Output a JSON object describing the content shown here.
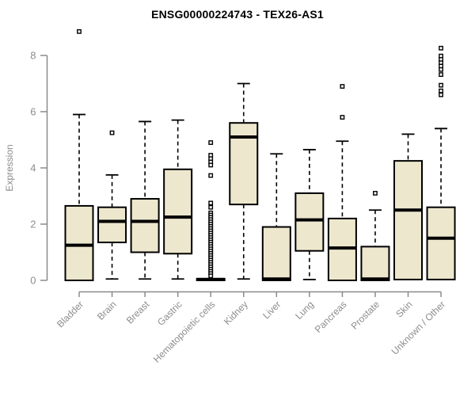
{
  "chart_data": {
    "type": "boxplot",
    "title": "ENSG00000224743 - TEX26-AS1",
    "xlabel": "",
    "ylabel": "Expression",
    "ylim": [
      0,
      8.9
    ],
    "yticks": [
      0,
      2,
      4,
      6,
      8
    ],
    "grid": false,
    "legend": "none",
    "categories": [
      "Bladder",
      "Brain",
      "Breast",
      "Gastric",
      "Hematopoietic cells",
      "Kidney",
      "Liver",
      "Lung",
      "Pancreas",
      "Prostate",
      "Skin",
      "Unknown / Other"
    ],
    "series": [
      {
        "category": "Bladder",
        "whisker_low": 0,
        "q1": 0,
        "median": 1.25,
        "q3": 2.65,
        "whisker_high": 5.9,
        "outliers": [
          8.85
        ]
      },
      {
        "category": "Brain",
        "whisker_low": 0.05,
        "q1": 1.35,
        "median": 2.1,
        "q3": 2.6,
        "whisker_high": 3.75,
        "outliers": [
          5.25
        ]
      },
      {
        "category": "Breast",
        "whisker_low": 0.05,
        "q1": 1.0,
        "median": 2.1,
        "q3": 2.9,
        "whisker_high": 5.65,
        "outliers": []
      },
      {
        "category": "Gastric",
        "whisker_low": 0.05,
        "q1": 0.95,
        "median": 2.25,
        "q3": 3.95,
        "whisker_high": 5.7,
        "outliers": []
      },
      {
        "category": "Hematopoietic cells",
        "whisker_low": 0,
        "q1": 0,
        "median": 0.03,
        "q3": 0.06,
        "whisker_high": 0.06,
        "outliers": [
          4.9,
          4.45,
          4.33,
          4.21,
          4.1,
          3.73,
          2.75,
          2.6,
          2.4,
          2.32,
          2.24,
          2.16,
          2.08,
          2.0,
          1.92,
          1.84,
          1.76,
          1.68,
          1.6,
          1.52,
          1.44,
          1.36,
          1.28,
          1.2,
          1.12,
          1.04,
          0.96,
          0.88,
          0.8,
          0.72,
          0.64,
          0.56,
          0.48,
          0.4,
          0.32,
          0.24,
          0.16
        ]
      },
      {
        "category": "Kidney",
        "whisker_low": 0.05,
        "q1": 2.7,
        "median": 5.1,
        "q3": 5.6,
        "whisker_high": 7.0,
        "outliers": []
      },
      {
        "category": "Liver",
        "whisker_low": 0,
        "q1": 0,
        "median": 0.05,
        "q3": 1.9,
        "whisker_high": 4.5,
        "outliers": []
      },
      {
        "category": "Lung",
        "whisker_low": 0.03,
        "q1": 1.05,
        "median": 2.15,
        "q3": 3.1,
        "whisker_high": 4.65,
        "outliers": []
      },
      {
        "category": "Pancreas",
        "whisker_low": 0,
        "q1": 0,
        "median": 1.15,
        "q3": 2.2,
        "whisker_high": 4.95,
        "outliers": [
          6.9,
          5.8
        ]
      },
      {
        "category": "Prostate",
        "whisker_low": 0,
        "q1": 0,
        "median": 0.05,
        "q3": 1.2,
        "whisker_high": 2.5,
        "outliers": [
          3.1
        ]
      },
      {
        "category": "Skin",
        "whisker_low": 0,
        "q1": 0.03,
        "median": 2.5,
        "q3": 4.25,
        "whisker_high": 5.2,
        "outliers": []
      },
      {
        "category": "Unknown / Other",
        "whisker_low": 0,
        "q1": 0.03,
        "median": 1.5,
        "q3": 2.6,
        "whisker_high": 5.4,
        "outliers": [
          8.26,
          7.98,
          7.86,
          7.74,
          7.62,
          7.5,
          7.32,
          6.94,
          6.74,
          6.6
        ]
      }
    ]
  },
  "colors": {
    "box_fill": "#ede7ce",
    "box_border": "#000000",
    "median": "#000000",
    "whisker": "#000000",
    "outlier": "#000000",
    "axis": "#8a8a8a",
    "tick_label": "#8c8c8c",
    "title": "#000000",
    "background": "#ffffff"
  }
}
